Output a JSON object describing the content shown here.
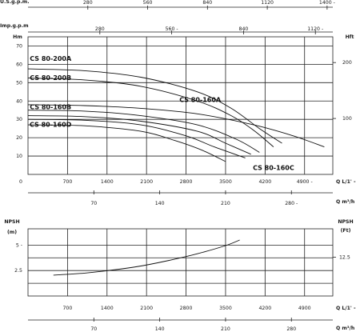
{
  "chart_data": [
    {
      "type": "line",
      "title": "",
      "units": {
        "top1": "U.S.g.p.m.",
        "top2": "Imp.g.p.m",
        "left": "Hm",
        "right": "Hft",
        "bottom1": "Q L/1' -",
        "bottom2": "Q m³/h"
      },
      "x_label": "Q L/1' -",
      "y_label": "Hm",
      "x_range": [
        0,
        5400
      ],
      "y_range": [
        0,
        75
      ],
      "x_ticks_lmin": [
        "0",
        "700",
        "1400",
        "2100",
        "2800",
        "3500",
        "4200",
        "4900 -"
      ],
      "x_ticks_m3h": [
        "70",
        "140",
        "210",
        "280 -"
      ],
      "x_ticks_usgpm": [
        "280",
        "560",
        "840",
        "1120",
        "1400 -"
      ],
      "x_ticks_impgpm": [
        "280",
        "560 -",
        "840",
        "1120 -"
      ],
      "y_ticks_hm": [
        "10",
        "20",
        "30",
        "40",
        "50",
        "60",
        "70"
      ],
      "y_ticks_hft": [
        "100",
        "200"
      ],
      "series": [
        {
          "name": "CS 80-200A",
          "x": [
            0,
            1000,
            2000,
            3000,
            3600,
            4100,
            4500
          ],
          "y": [
            57.5,
            56.5,
            53,
            45,
            36,
            25,
            17
          ]
        },
        {
          "name": "CS 80-160A",
          "x": [
            0,
            1000,
            2000,
            3000,
            4000,
            4700,
            5250
          ],
          "y": [
            38,
            37.5,
            36,
            33,
            27,
            21,
            15
          ]
        },
        {
          "name": "CS 80-200B",
          "x": [
            0,
            1000,
            2000,
            3000,
            3600,
            4000,
            4350
          ],
          "y": [
            52.5,
            51.5,
            48,
            40,
            32,
            24,
            15
          ]
        },
        {
          "name": "CS 80-160B",
          "x": [
            0,
            1000,
            2000,
            3000,
            3700,
            4100
          ],
          "y": [
            35,
            34.5,
            32,
            27,
            19,
            12
          ]
        },
        {
          "name": "",
          "x": [
            0,
            1000,
            2000,
            3000,
            3500,
            3950
          ],
          "y": [
            32,
            31.5,
            29,
            23.5,
            17,
            11
          ]
        },
        {
          "name": "CS 80-160C",
          "x": [
            0,
            1000,
            2000,
            2800,
            3300,
            3850
          ],
          "y": [
            30,
            29.5,
            27,
            21,
            15,
            9
          ]
        },
        {
          "name": "CS 80-160D",
          "x": [
            0,
            1000,
            2000,
            2600,
            3100,
            3500
          ],
          "y": [
            27,
            26.5,
            23.5,
            18.5,
            13,
            7
          ]
        }
      ]
    },
    {
      "type": "line",
      "title": "",
      "units": {
        "left": "NPSH",
        "left_sub": "(m)",
        "right": "NPSH",
        "right_sub": "(Ft)",
        "bottom1": "Q L/1' -",
        "bottom2": "Q m³/h"
      },
      "x_label": "Q L/1' -",
      "y_label": "NPSH (m)",
      "x_range": [
        0,
        5400
      ],
      "y_range": [
        0,
        6.6
      ],
      "x_ticks_lmin": [
        "700",
        "1400",
        "2100",
        "2800",
        "3500",
        "4200",
        "4900"
      ],
      "x_ticks_m3h": [
        "70",
        "140",
        "210",
        "280"
      ],
      "y_ticks_m": [
        "2.5",
        "5 -"
      ],
      "y_ticks_ft": [
        "12.5"
      ],
      "series": [
        {
          "name": "",
          "x": [
            450,
            1000,
            1500,
            2000,
            2500,
            3000,
            3500,
            3750
          ],
          "y": [
            2.05,
            2.25,
            2.55,
            2.95,
            3.5,
            4.15,
            4.95,
            5.5
          ]
        }
      ]
    }
  ]
}
